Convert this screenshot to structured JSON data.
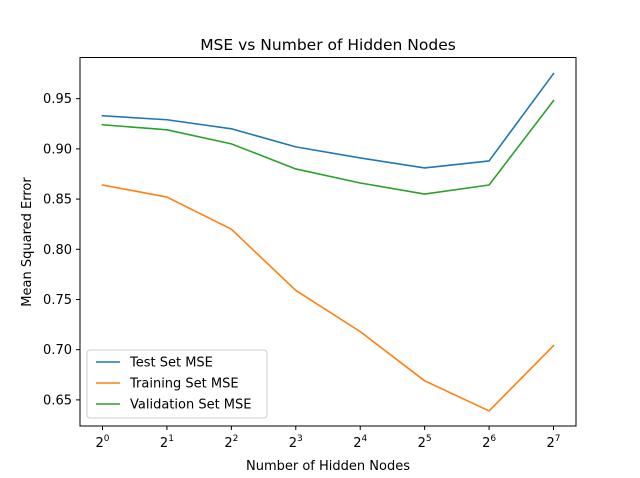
{
  "chart_data": {
    "type": "line",
    "title": "MSE vs Number of Hidden Nodes",
    "xlabel": "Number of Hidden Nodes",
    "ylabel": "Mean Squared Error",
    "x_scale": "log2",
    "x": [
      1,
      2,
      4,
      8,
      16,
      32,
      64,
      128
    ],
    "x_tick_labels": [
      {
        "base": "2",
        "exp": "0"
      },
      {
        "base": "2",
        "exp": "1"
      },
      {
        "base": "2",
        "exp": "2"
      },
      {
        "base": "2",
        "exp": "3"
      },
      {
        "base": "2",
        "exp": "4"
      },
      {
        "base": "2",
        "exp": "5"
      },
      {
        "base": "2",
        "exp": "6"
      },
      {
        "base": "2",
        "exp": "7"
      }
    ],
    "ylim": [
      0.624,
      0.991
    ],
    "y_ticks": [
      0.65,
      0.7,
      0.75,
      0.8,
      0.85,
      0.9,
      0.95
    ],
    "y_tick_labels": [
      "0.65",
      "0.70",
      "0.75",
      "0.80",
      "0.85",
      "0.90",
      "0.95"
    ],
    "grid": false,
    "legend_position": "lower-left",
    "series": [
      {
        "name": "Test Set MSE",
        "color": "#1f77b4",
        "values": [
          0.933,
          0.929,
          0.92,
          0.902,
          0.891,
          0.881,
          0.888,
          0.975
        ]
      },
      {
        "name": "Training Set MSE",
        "color": "#ff7f0e",
        "values": [
          0.864,
          0.852,
          0.82,
          0.759,
          0.718,
          0.669,
          0.639,
          0.704
        ]
      },
      {
        "name": "Validation Set MSE",
        "color": "#2ca02c",
        "values": [
          0.924,
          0.919,
          0.905,
          0.88,
          0.866,
          0.855,
          0.864,
          0.948
        ]
      }
    ]
  }
}
